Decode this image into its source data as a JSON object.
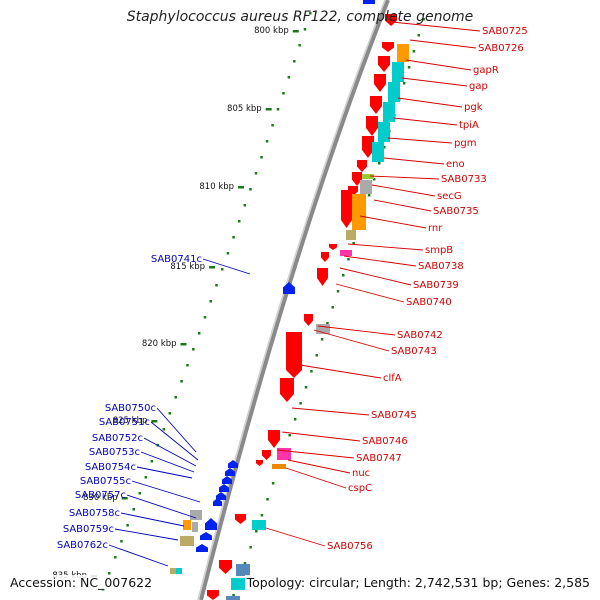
{
  "title": "Staphylococcus aureus RF122, complete genome",
  "footer": {
    "accession": "Accession: NC_007622",
    "summary": "Topology: circular; Length: 2,742,531 bp; Genes: 2,585"
  },
  "colors": {
    "forward_label": "#d40000",
    "reverse_label": "#0000bb",
    "forward_gene": "#ff0000",
    "reverse_gene": "#0022ee",
    "tick": "#1a7a1a",
    "backbone": "#888888"
  },
  "scale_labels": [
    "800 kbp",
    "805 kbp",
    "810 kbp",
    "815 kbp",
    "820 kbp",
    "825 kbp",
    "830 kbp",
    "835 kbp"
  ],
  "forward_labels": [
    "SAB0725",
    "SAB0726",
    "gapR",
    "gap",
    "pgk",
    "tpiA",
    "pgm",
    "eno",
    "SAB0733",
    "secG",
    "SAB0735",
    "rnr",
    "smpB",
    "SAB0738",
    "SAB0739",
    "SAB0740",
    "SAB0742",
    "SAB0743",
    "clfA",
    "SAB0745",
    "SAB0746",
    "SAB0747",
    "nuc",
    "cspC",
    "SAB0756"
  ],
  "reverse_labels": [
    "SAB0741c",
    "SAB0750c",
    "SAB0751c",
    "SAB0752c",
    "SAB0753c",
    "SAB0754c",
    "SAB0755c",
    "SAB0757c",
    "SAB0758c",
    "SAB0759c",
    "SAB0762c"
  ],
  "cog_colors": [
    "#ff9900",
    "#00cccc",
    "#aaaaaa",
    "#99cc33",
    "#ff33aa",
    "#bbaa66",
    "#5588bb",
    "#ee8800"
  ]
}
